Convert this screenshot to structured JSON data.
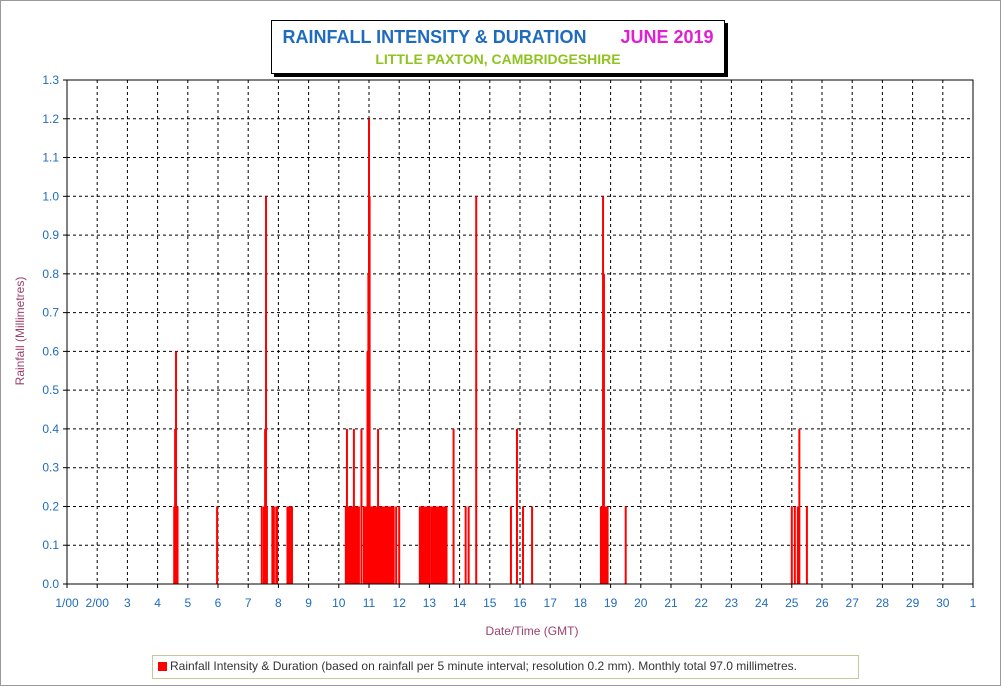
{
  "title": {
    "main": "RAINFALL INTENSITY & DURATION",
    "period": "JUNE 2019",
    "location": "LITTLE PAXTON, CAMBRIDGESHIRE"
  },
  "legend": {
    "text": "Rainfall Intensity & Duration (based on rainfall per 5 minute interval; resolution 0.2 mm). Monthly total 97.0 millimetres."
  },
  "colors": {
    "title": "#1f6bbf",
    "period": "#e01fd0",
    "subtitle": "#8fc31f",
    "bars": "#ff0000",
    "ticks": "#1f6bbf",
    "axis_label": "#9c3f6e"
  },
  "chart_data": {
    "type": "bar",
    "title": "RAINFALL INTENSITY & DURATION",
    "xlabel": "Date/Time (GMT)",
    "ylabel": "Rainfall  (Millimetres)",
    "xlim": [
      1,
      31
    ],
    "ylim": [
      0,
      1.3
    ],
    "grid": true,
    "y_ticks": [
      "0.0",
      "0.1",
      "0.2",
      "0.3",
      "0.4",
      "0.5",
      "0.6",
      "0.7",
      "0.8",
      "0.9",
      "1.0",
      "1.1",
      "1.2",
      "1.3"
    ],
    "x_ticks": [
      "1/00",
      "2/00",
      "3",
      "4",
      "5",
      "6",
      "7",
      "8",
      "9",
      "10",
      "11",
      "12",
      "13",
      "14",
      "15",
      "16",
      "17",
      "18",
      "19",
      "20",
      "21",
      "22",
      "23",
      "24",
      "25",
      "26",
      "27",
      "28",
      "29",
      "30",
      "1"
    ],
    "series": [
      {
        "x": [
          4.55,
          4.58,
          4.61,
          4.63,
          4.66,
          5.97,
          7.45,
          7.52,
          7.56,
          7.59,
          7.62,
          7.8,
          7.85,
          7.93,
          7.96,
          8.3,
          8.35,
          8.4,
          8.45,
          10.25,
          10.27,
          10.3,
          10.4,
          10.5,
          10.6,
          10.75,
          10.85,
          10.95,
          10.98,
          11.0,
          11.02,
          11.05,
          11.1,
          11.3,
          11.4,
          11.7,
          11.9,
          12.0,
          12.7,
          13.2,
          13.5,
          13.8,
          14.2,
          14.3,
          14.55,
          15.7,
          15.9,
          16.1,
          16.4,
          18.68,
          18.72,
          18.75,
          18.78,
          18.82,
          18.85,
          18.9,
          19.5,
          25.0,
          25.1,
          25.2,
          25.25,
          25.5
        ],
        "values": [
          0.2,
          0.4,
          0.6,
          0.2,
          0.2,
          0.2,
          0.2,
          0.2,
          0.4,
          1.0,
          0.2,
          0.2,
          0.2,
          0.2,
          0.2,
          0.2,
          0.2,
          0.2,
          0.2,
          0.2,
          0.4,
          0.2,
          0.2,
          0.4,
          0.2,
          0.4,
          0.2,
          0.6,
          0.8,
          1.2,
          1.0,
          0.2,
          0.2,
          0.4,
          0.2,
          0.2,
          0.2,
          0.2,
          0.2,
          0.2,
          0.2,
          0.4,
          0.2,
          0.2,
          1.0,
          0.2,
          0.4,
          0.2,
          0.2,
          0.2,
          0.2,
          1.0,
          0.8,
          0.2,
          0.2,
          0.2,
          0.2,
          0.2,
          0.2,
          0.2,
          0.4,
          0.2
        ]
      }
    ],
    "dense_runs": [
      {
        "from": 10.2,
        "to": 10.7,
        "value": 0.2
      },
      {
        "from": 10.8,
        "to": 11.85,
        "value": 0.2
      },
      {
        "from": 12.65,
        "to": 13.05,
        "value": 0.2
      },
      {
        "from": 13.05,
        "to": 13.6,
        "value": 0.2
      }
    ]
  }
}
